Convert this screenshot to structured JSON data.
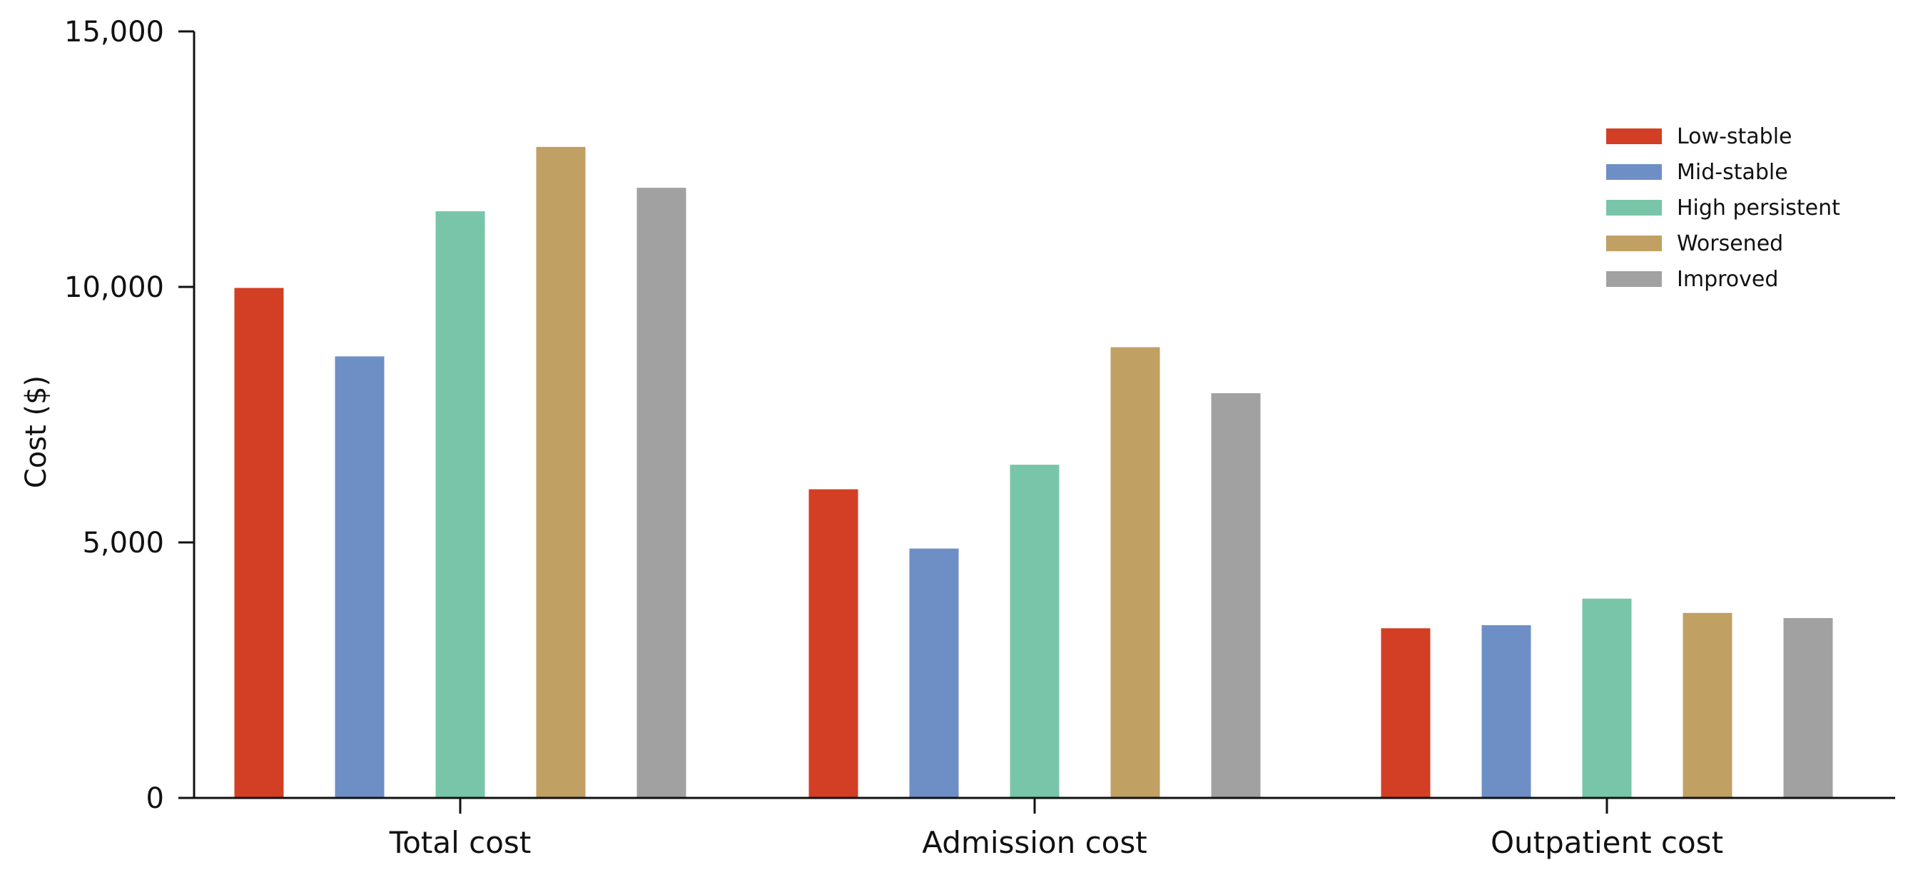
{
  "chart_data": {
    "type": "bar",
    "title": "",
    "xlabel": "",
    "ylabel": "Cost ($)",
    "ylim": [
      0,
      15000
    ],
    "yticks": [
      0,
      5000,
      10000,
      15000
    ],
    "ytick_labels": [
      "0",
      "5,000",
      "10,000",
      "15,000"
    ],
    "grid": false,
    "legend_position": "top-right",
    "categories": [
      "Total cost",
      "Admission cost",
      "Outpatient cost"
    ],
    "series": [
      {
        "name": "Low-stable",
        "color": "#D33F24",
        "values": [
          9980,
          6040,
          3320
        ]
      },
      {
        "name": "Mid-stable",
        "color": "#6E8FC5",
        "values": [
          8640,
          4880,
          3380
        ]
      },
      {
        "name": "High persistent",
        "color": "#78C5AA",
        "values": [
          11480,
          6520,
          3900
        ]
      },
      {
        "name": "Worsened",
        "color": "#C0A063",
        "values": [
          12740,
          8820,
          3620
        ]
      },
      {
        "name": "Improved",
        "color": "#A0A1A0",
        "values": [
          11940,
          7920,
          3520
        ]
      }
    ]
  }
}
